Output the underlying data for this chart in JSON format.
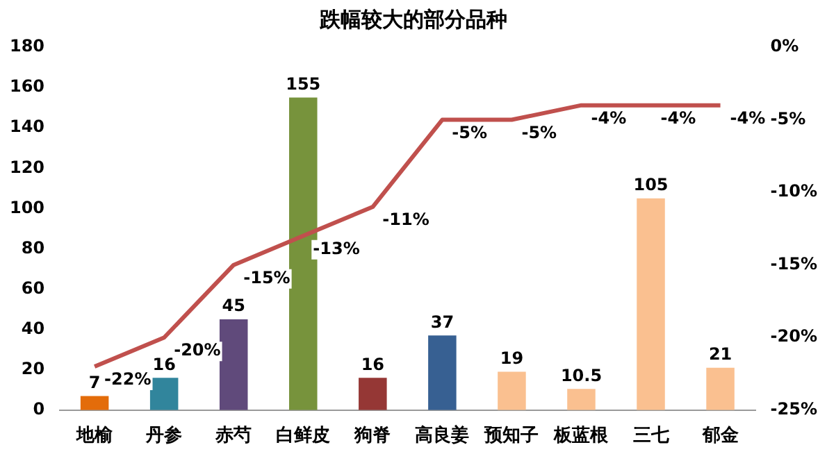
{
  "chart_data": {
    "type": "bar",
    "title": "跌幅较大的部分品种",
    "categories": [
      "地榆",
      "丹参",
      "赤芍",
      "白鲜皮",
      "狗脊",
      "高良姜",
      "预知子",
      "板蓝根",
      "三七",
      "郁金"
    ],
    "series": [
      {
        "colors": [
          "#e36c0a",
          "#31859c",
          "#604a7b",
          "#77933c",
          "#953735",
          "#376092",
          "#fac090",
          "#fac090",
          "#fac090",
          "#fac090"
        ],
        "values": [
          7,
          16,
          45,
          155,
          16,
          37,
          19,
          10.5,
          105,
          21
        ],
        "value_labels": [
          "7",
          "16",
          "45",
          "155",
          "16",
          "37",
          "19",
          "10.5",
          "105",
          "21"
        ]
      },
      {
        "type": "line",
        "axis": "y2",
        "color": "#c0504d",
        "values": [
          -22,
          -20,
          -15,
          -13,
          -11,
          -5,
          -5,
          -4,
          -4,
          -4
        ],
        "value_labels": [
          "-22%",
          "-20%",
          "-15%",
          "-13%",
          "-11%",
          "-5%",
          "-5%",
          "-4%",
          "-4%",
          "-4%"
        ]
      }
    ],
    "ylim": [
      0,
      180
    ],
    "yticks": [
      0,
      20,
      40,
      60,
      80,
      100,
      120,
      140,
      160,
      180
    ],
    "y2lim": [
      -25,
      0
    ],
    "y2ticks": [
      {
        "value": -25,
        "label": "-25%"
      },
      {
        "value": -20,
        "label": "-20%"
      },
      {
        "value": -15,
        "label": "-15%"
      },
      {
        "value": -10,
        "label": "-10%"
      },
      {
        "value": -5,
        "label": "-5%"
      },
      {
        "value": 0,
        "label": "0%"
      }
    ],
    "grid": false,
    "legend": false,
    "marker": "none",
    "line_style": "solid"
  }
}
